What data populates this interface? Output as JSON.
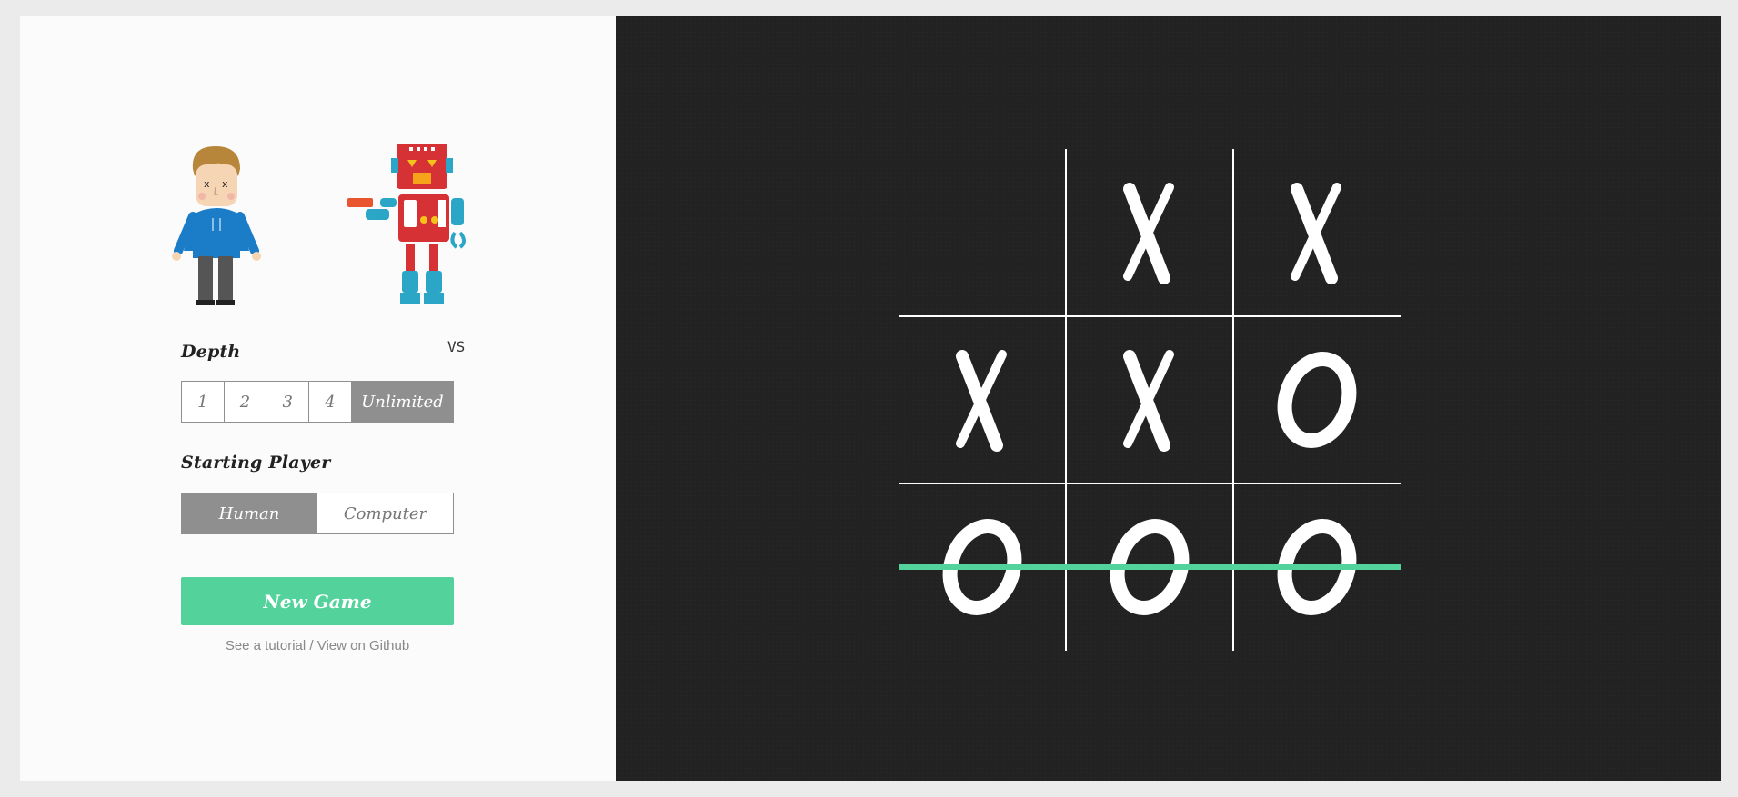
{
  "players": {
    "vs_label": "VS"
  },
  "depth": {
    "label": "Depth",
    "options": [
      "1",
      "2",
      "3",
      "4",
      "Unlimited"
    ],
    "selected": "Unlimited"
  },
  "starting_player": {
    "label": "Starting Player",
    "options": [
      "Human",
      "Computer"
    ],
    "selected": "Human"
  },
  "new_game_label": "New Game",
  "links": {
    "tutorial": "See a tutorial",
    "separator": " / ",
    "github": "View on Github"
  },
  "board": {
    "cells": [
      "",
      "X",
      "X",
      "X",
      "X",
      "O",
      "O",
      "O",
      "O"
    ],
    "winning_line": "bottom-row",
    "win_color": "#53d39b"
  },
  "colors": {
    "accent": "#53d39b",
    "selected": "#8f8f8f",
    "board_bg": "#222222"
  }
}
